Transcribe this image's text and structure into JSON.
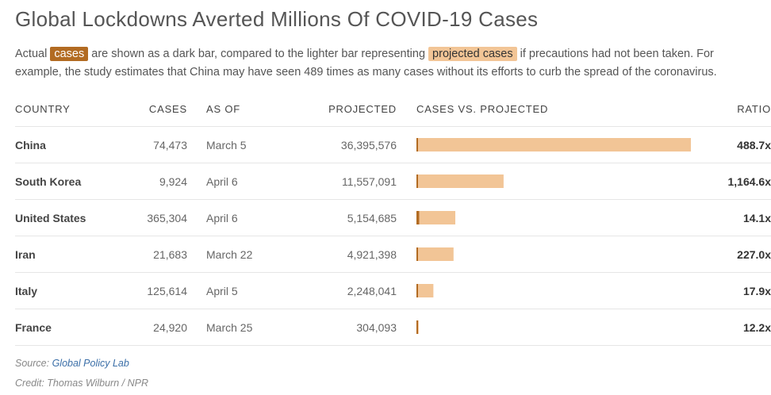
{
  "title": "Global Lockdowns Averted Millions Of COVID-19 Cases",
  "description": {
    "part1": "Actual ",
    "cases_chip": "cases",
    "part2": " are shown as a dark bar, compared to the lighter bar representing ",
    "projected_chip": "projected cases",
    "part3": " if precautions had not been taken. For example, the study estimates that China may have seen 489 times as many cases without its efforts to curb the spread of the coronavirus."
  },
  "headers": {
    "country": "COUNTRY",
    "cases": "CASES",
    "as_of": "AS OF",
    "projected": "PROJECTED",
    "chart": "CASES VS. PROJECTED",
    "ratio": "RATIO"
  },
  "source": {
    "label": "Source: ",
    "link": "Global Policy Lab"
  },
  "credit": "Credit: Thomas Wilburn / NPR",
  "colors": {
    "cases": "#b26b22",
    "projected": "#f2c596"
  },
  "chart_data": {
    "type": "bar",
    "categories": [
      "China",
      "South Korea",
      "United States",
      "Iran",
      "Italy",
      "France"
    ],
    "series": [
      {
        "name": "cases",
        "values": [
          74473,
          9924,
          365304,
          21683,
          125614,
          24920
        ]
      },
      {
        "name": "projected cases",
        "values": [
          36395576,
          11557091,
          5154685,
          4921398,
          2248041,
          304093
        ]
      }
    ],
    "rows": [
      {
        "country": "China",
        "cases": "74,473",
        "as_of": "March 5",
        "projected": "36,395,576",
        "ratio": "488.7x"
      },
      {
        "country": "South Korea",
        "cases": "9,924",
        "as_of": "April 6",
        "projected": "11,557,091",
        "ratio": "1,164.6x"
      },
      {
        "country": "United States",
        "cases": "365,304",
        "as_of": "April 6",
        "projected": "5,154,685",
        "ratio": "14.1x"
      },
      {
        "country": "Iran",
        "cases": "21,683",
        "as_of": "March 22",
        "projected": "4,921,398",
        "ratio": "227.0x"
      },
      {
        "country": "Italy",
        "cases": "125,614",
        "as_of": "April 5",
        "projected": "2,248,041",
        "ratio": "17.9x"
      },
      {
        "country": "France",
        "cases": "24,920",
        "as_of": "March 25",
        "projected": "304,093",
        "ratio": "12.2x"
      }
    ],
    "xlim": [
      0,
      36395576
    ]
  }
}
